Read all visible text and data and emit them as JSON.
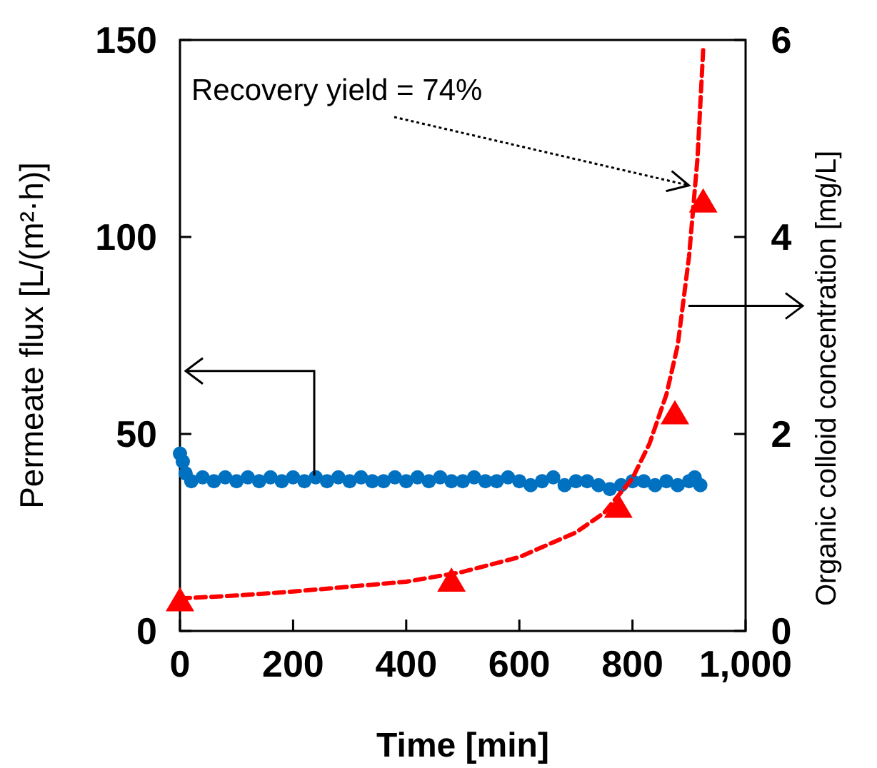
{
  "chart_data": {
    "type": "line",
    "xlabel": "Time [min]",
    "ylabel": "Permeate flux [L/(m²·h)]",
    "y2label": "Organic colloid concentration [mg/L]",
    "xlim": [
      0,
      1000
    ],
    "xticks": [
      0,
      200,
      400,
      600,
      800,
      {
        "value": 1000,
        "label": "1,000"
      }
    ],
    "ylim": [
      0,
      150
    ],
    "yticks": [
      0,
      50,
      100,
      150
    ],
    "y2lim": [
      0,
      6
    ],
    "y2ticks": [
      0,
      2,
      4,
      6
    ],
    "annotations": [
      "Recovery yield = 74%"
    ],
    "series": [
      {
        "type": "scatter",
        "color": "#0070c0",
        "marker": "circle",
        "x": [
          0,
          5,
          10,
          20,
          40,
          60,
          80,
          100,
          120,
          140,
          160,
          180,
          200,
          220,
          240,
          260,
          280,
          300,
          320,
          340,
          360,
          380,
          400,
          420,
          440,
          460,
          480,
          500,
          520,
          540,
          560,
          580,
          600,
          620,
          640,
          660,
          680,
          700,
          720,
          740,
          760,
          780,
          800,
          820,
          840,
          860,
          880,
          900,
          910,
          920
        ],
        "values": [
          45,
          43,
          40,
          38,
          39,
          38,
          39,
          38,
          39,
          38,
          39,
          38,
          39,
          38,
          39,
          38,
          39,
          38,
          39,
          38,
          38,
          39,
          38,
          39,
          38,
          39,
          38,
          38,
          39,
          38,
          38,
          39,
          38,
          37,
          38,
          39,
          37,
          38,
          38,
          37,
          36,
          37,
          38,
          38,
          37,
          38,
          37,
          38,
          39,
          37
        ]
      },
      {
        "type": "scatter",
        "axis": "y2",
        "color": "#ff0000",
        "marker": "triangle",
        "x": [
          0,
          480,
          775,
          875,
          925
        ],
        "values": [
          0.3,
          0.5,
          1.25,
          2.2,
          4.35
        ]
      },
      {
        "axis": "y2",
        "color": "#ff0000",
        "marker": "none",
        "line_style": "dashed",
        "x": [
          0,
          100,
          200,
          300,
          400,
          500,
          600,
          700,
          750,
          800,
          830,
          860,
          880,
          900,
          915,
          925
        ],
        "values": [
          0.33,
          0.36,
          0.4,
          0.45,
          0.5,
          0.6,
          0.75,
          1.0,
          1.2,
          1.55,
          1.9,
          2.4,
          2.9,
          3.8,
          4.8,
          5.9
        ]
      }
    ]
  }
}
